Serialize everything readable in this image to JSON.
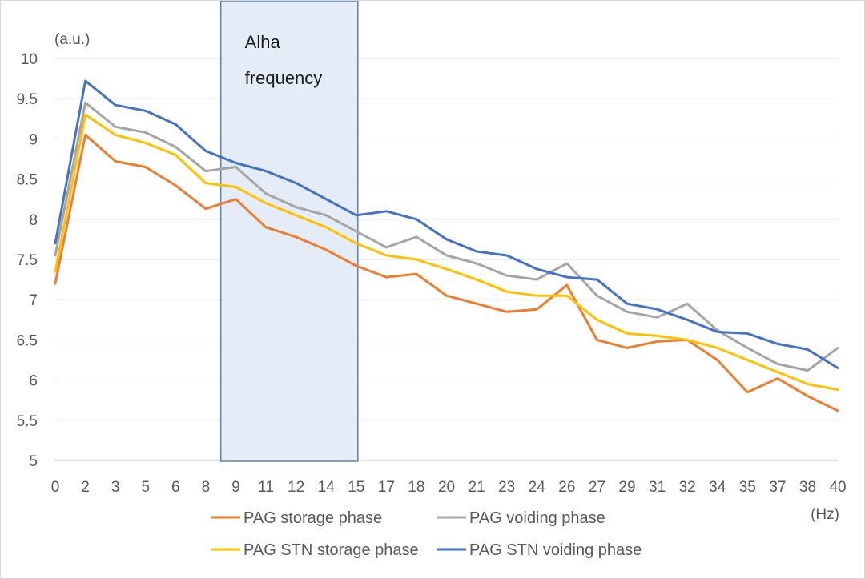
{
  "chart_data": {
    "type": "line",
    "y_unit": "(a.u.)",
    "x_unit": "(Hz)",
    "ylim": [
      5,
      10
    ],
    "y_ticks": [
      "5",
      "5.5",
      "6",
      "6.5",
      "7",
      "7.5",
      "8",
      "8.5",
      "9",
      "9.5",
      "10"
    ],
    "x_tick_labels": [
      "0",
      "2",
      "3",
      "5",
      "6",
      "8",
      "9",
      "11",
      "12",
      "14",
      "15",
      "17",
      "18",
      "20",
      "21",
      "23",
      "24",
      "26",
      "27",
      "29",
      "31",
      "32",
      "34",
      "35",
      "37",
      "38",
      "40"
    ],
    "grid": "horizontal",
    "legend_position": "bottom",
    "annotation": {
      "lines": [
        "Alha",
        "frequency"
      ],
      "x_range": [
        "8",
        "15"
      ],
      "fill_color": "#e3ecf7",
      "border_color": "#5b84b1"
    },
    "x_index": [
      0,
      1,
      2,
      3,
      4,
      5,
      6,
      7,
      8,
      9,
      10,
      11,
      12,
      13,
      14,
      15,
      16,
      17,
      18,
      19,
      20,
      21,
      22,
      23,
      24,
      25,
      26
    ],
    "series": [
      {
        "name": "PAG storage phase",
        "color": "#ed7d31",
        "values": [
          7.2,
          9.05,
          8.72,
          8.65,
          8.42,
          8.13,
          8.25,
          7.9,
          7.78,
          7.62,
          7.42,
          7.28,
          7.32,
          7.05,
          6.95,
          6.85,
          6.88,
          7.18,
          6.5,
          6.4,
          6.48,
          6.5,
          6.25,
          5.85,
          6.02,
          5.8,
          5.62
        ]
      },
      {
        "name": "PAG voiding phase",
        "color": "#a5a5a5",
        "values": [
          7.55,
          9.45,
          9.15,
          9.08,
          8.9,
          8.6,
          8.65,
          8.32,
          8.15,
          8.05,
          7.85,
          7.65,
          7.78,
          7.55,
          7.45,
          7.3,
          7.25,
          7.45,
          7.05,
          6.85,
          6.78,
          6.95,
          6.62,
          6.4,
          6.2,
          6.12,
          6.4
        ]
      },
      {
        "name": "PAG STN storage phase",
        "color": "#ffc000",
        "values": [
          7.35,
          9.3,
          9.05,
          8.95,
          8.8,
          8.45,
          8.4,
          8.2,
          8.05,
          7.9,
          7.7,
          7.55,
          7.5,
          7.38,
          7.25,
          7.1,
          7.05,
          7.05,
          6.75,
          6.58,
          6.55,
          6.5,
          6.4,
          6.25,
          6.1,
          5.95,
          5.88
        ]
      },
      {
        "name": "PAG STN voiding phase",
        "color": "#4472c4",
        "values": [
          7.7,
          9.72,
          9.42,
          9.35,
          9.18,
          8.85,
          8.7,
          8.6,
          8.45,
          8.25,
          8.05,
          8.1,
          8.0,
          7.75,
          7.6,
          7.55,
          7.38,
          7.28,
          7.25,
          6.95,
          6.88,
          6.75,
          6.6,
          6.58,
          6.45,
          6.38,
          6.15
        ]
      }
    ]
  }
}
